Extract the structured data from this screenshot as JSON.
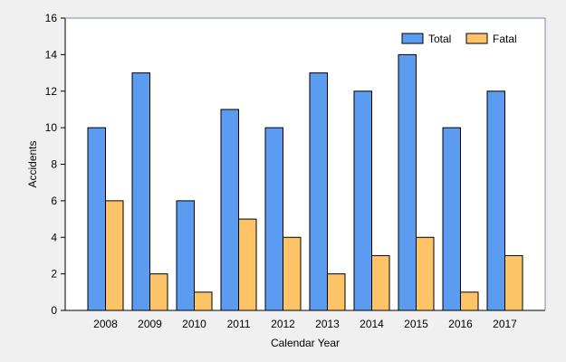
{
  "chart_data": {
    "type": "bar",
    "title": "",
    "xlabel": "Calendar Year",
    "ylabel": "Accidents",
    "categories": [
      "2008",
      "2009",
      "2010",
      "2011",
      "2012",
      "2013",
      "2014",
      "2015",
      "2016",
      "2017"
    ],
    "series": [
      {
        "name": "Total",
        "color": "#5b9cf0",
        "values": [
          10,
          13,
          6,
          11,
          10,
          13,
          12,
          14,
          10,
          12
        ]
      },
      {
        "name": "Fatal",
        "color": "#fcc466",
        "values": [
          6,
          2,
          1,
          5,
          4,
          2,
          3,
          4,
          1,
          3
        ]
      }
    ],
    "ylim": [
      0,
      16
    ],
    "yticks": [
      0,
      2,
      4,
      6,
      8,
      10,
      12,
      14,
      16
    ],
    "grid": false,
    "legend_position": "top-right"
  },
  "colors": {
    "background": "#f0f0f0",
    "plot_background": "#ffffff",
    "bar_outline": "#000000"
  }
}
